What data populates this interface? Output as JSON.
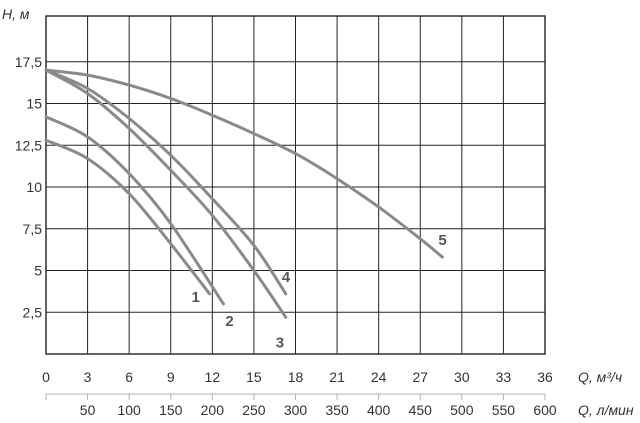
{
  "chart_data": {
    "type": "line",
    "ylabel": "H, м",
    "xlabel": "Q, м³/ч",
    "x2label": "Q, л/мин",
    "xlim": [
      0,
      36
    ],
    "ylim": [
      0,
      20
    ],
    "x_ticks": [
      "0",
      "3",
      "6",
      "9",
      "12",
      "15",
      "18",
      "21",
      "24",
      "27",
      "30",
      "33",
      "36"
    ],
    "x2_ticks": [
      "50",
      "100",
      "150",
      "200",
      "250",
      "300",
      "350",
      "400",
      "450",
      "500",
      "550",
      "600"
    ],
    "y_ticks": [
      "2,5",
      "5",
      "7,5",
      "10",
      "12,5",
      "15",
      "17,5"
    ],
    "grid": true,
    "colors": {
      "curve": "#8a8a8a",
      "grid": "#222222",
      "axis2": "#aab4c3"
    },
    "series": [
      {
        "name": "1",
        "x": [
          0,
          3,
          6,
          9,
          11.8
        ],
        "y": [
          12.8,
          11.7,
          9.6,
          6.6,
          3.6
        ]
      },
      {
        "name": "2",
        "x": [
          0,
          3,
          6,
          9,
          12.8
        ],
        "y": [
          14.2,
          13.0,
          10.8,
          7.8,
          3.0
        ]
      },
      {
        "name": "3",
        "x": [
          0,
          3,
          6,
          9,
          12,
          15,
          17.3
        ],
        "y": [
          17.0,
          15.6,
          13.5,
          11.0,
          8.3,
          5.0,
          2.2
        ]
      },
      {
        "name": "4",
        "x": [
          0,
          3,
          6,
          9,
          12,
          15,
          17.3
        ],
        "y": [
          17.0,
          15.9,
          14.1,
          11.9,
          9.3,
          6.5,
          3.6
        ]
      },
      {
        "name": "5",
        "x": [
          0,
          3,
          6,
          9,
          12,
          15,
          18,
          21,
          24,
          27,
          28.6
        ],
        "y": [
          17.0,
          16.7,
          16.1,
          15.3,
          14.3,
          13.2,
          12.0,
          10.5,
          8.8,
          6.9,
          5.8
        ]
      }
    ]
  }
}
